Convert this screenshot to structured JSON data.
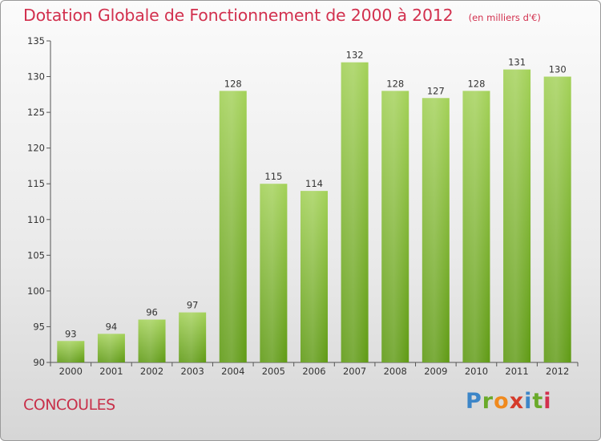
{
  "header": {
    "title": "Dotation Globale de Fonctionnement de 2000 à 2012",
    "unit": "(en milliers d'€)"
  },
  "footer": {
    "commune": "CONCOULES",
    "brand": "Proxiti"
  },
  "colors": {
    "title": "#d2304e",
    "bar_light": "#a3d158",
    "bar_dark": "#5f9a14",
    "axis": "#555555"
  },
  "chart_data": {
    "type": "bar",
    "title": "Dotation Globale de Fonctionnement de 2000 à 2012",
    "subtitle": "(en milliers d'€)",
    "xlabel": "",
    "ylabel": "",
    "categories": [
      "2000",
      "2001",
      "2002",
      "2003",
      "2004",
      "2005",
      "2006",
      "2007",
      "2008",
      "2009",
      "2010",
      "2011",
      "2012"
    ],
    "values": [
      93,
      94,
      96,
      97,
      128,
      115,
      114,
      132,
      128,
      127,
      128,
      131,
      130
    ],
    "ylim": [
      90,
      135
    ],
    "yticks": [
      90,
      95,
      100,
      105,
      110,
      115,
      120,
      125,
      130,
      135
    ],
    "grid": false,
    "legend": "none"
  }
}
